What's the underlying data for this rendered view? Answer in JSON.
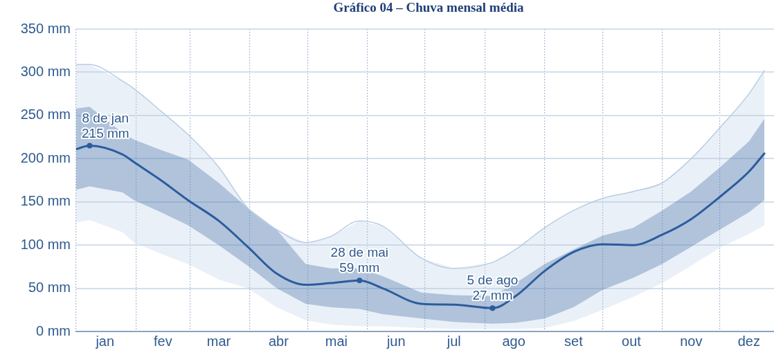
{
  "chart_data": {
    "type": "line",
    "title": "Gráfico 04 – Chuva mensal média",
    "x": [
      "--01-01",
      "--01-08",
      "--01-25",
      "--01-31",
      "--02-14",
      "--02-28",
      "--03-16",
      "--03-31",
      "--04-15",
      "--04-30",
      "--05-13",
      "--05-28",
      "--06-09",
      "--06-29",
      "--07-16",
      "--08-05",
      "--08-17",
      "--09-01",
      "--09-16",
      "--10-01",
      "--10-17",
      "--11-01",
      "--11-16",
      "--12-01",
      "--12-16",
      "--12-24"
    ],
    "xlim": [
      "--01-01",
      "--12-28"
    ],
    "xticks": [
      {
        "value": "--01-01",
        "label": null
      },
      {
        "value": "--01-16",
        "label": "jan"
      },
      {
        "value": "--02-01",
        "label": null
      },
      {
        "value": "--02-15",
        "label": "fev"
      },
      {
        "value": "--03-01",
        "label": null
      },
      {
        "value": "--03-16",
        "label": "mar"
      },
      {
        "value": "--04-01",
        "label": null
      },
      {
        "value": "--04-16",
        "label": "abr"
      },
      {
        "value": "--05-01",
        "label": null
      },
      {
        "value": "--05-16",
        "label": "mai"
      },
      {
        "value": "--06-01",
        "label": null
      },
      {
        "value": "--06-16",
        "label": "jun"
      },
      {
        "value": "--07-01",
        "label": null
      },
      {
        "value": "--07-16",
        "label": "jul"
      },
      {
        "value": "--08-01",
        "label": null
      },
      {
        "value": "--08-16",
        "label": "ago"
      },
      {
        "value": "--09-01",
        "label": null
      },
      {
        "value": "--09-16",
        "label": "set"
      },
      {
        "value": "--10-01",
        "label": null
      },
      {
        "value": "--10-16",
        "label": "out"
      },
      {
        "value": "--11-01",
        "label": null
      },
      {
        "value": "--11-16",
        "label": "nov"
      },
      {
        "value": "--12-01",
        "label": null
      },
      {
        "value": "--12-16",
        "label": "dez"
      }
    ],
    "ylim": [
      0,
      350
    ],
    "yticks": [
      {
        "value": 0,
        "label": "0 mm"
      },
      {
        "value": 50,
        "label": "50 mm"
      },
      {
        "value": 100,
        "label": "100 mm"
      },
      {
        "value": 150,
        "label": "150 mm"
      },
      {
        "value": 200,
        "label": "200 mm"
      },
      {
        "value": 250,
        "label": "250 mm"
      },
      {
        "value": 300,
        "label": "300 mm"
      },
      {
        "value": 350,
        "label": "350 mm"
      }
    ],
    "grid": true,
    "legend": false,
    "marker": "none",
    "line_style": "solid",
    "series": [
      {
        "color": "#2b5c9c",
        "values": [
          211,
          215,
          205,
          196,
          175,
          152,
          128,
          98,
          67,
          54,
          56,
          59,
          50,
          32,
          31,
          27,
          41,
          70,
          92,
          101,
          100,
          112,
          130,
          156,
          185,
          206
        ],
        "lower": [
          164,
          168,
          161,
          152,
          138,
          123,
          100,
          76,
          50,
          32,
          28,
          26,
          20,
          15,
          11,
          9,
          10,
          15,
          28,
          48,
          62,
          78,
          98,
          118,
          138,
          152
        ],
        "upper": [
          258,
          260,
          230,
          222,
          210,
          199,
          172,
          143,
          118,
          78,
          73,
          73,
          64,
          45,
          42,
          41,
          56,
          78,
          95,
          111,
          120,
          140,
          162,
          190,
          220,
          246
        ]
      },
      {
        "color": "#b9cce3",
        "values": [
          309,
          309,
          290,
          281,
          255,
          228,
          190,
          143,
          118,
          103,
          110,
          128,
          122,
          85,
          73,
          80,
          95,
          120,
          140,
          154,
          162,
          172,
          200,
          236,
          275,
          302
        ],
        "lower": [
          126,
          129,
          115,
          103,
          90,
          78,
          60,
          50,
          28,
          13,
          8,
          6,
          6,
          4,
          3,
          3,
          3,
          4,
          12,
          25,
          40,
          56,
          76,
          97,
          113,
          123
        ],
        "upper": [
          309,
          309,
          290,
          281,
          255,
          228,
          190,
          143,
          118,
          103,
          110,
          128,
          122,
          85,
          73,
          80,
          95,
          120,
          140,
          154,
          162,
          172,
          200,
          236,
          275,
          302
        ]
      }
    ],
    "annotations": [
      {
        "text": "8 de jan\n215 mm",
        "x": "--01-08",
        "y": 215
      },
      {
        "text": "28 de mai\n59 mm",
        "x": "--05-28",
        "y": 59
      },
      {
        "text": "5 de ago\n27 mm",
        "x": "--08-05",
        "y": 27
      }
    ]
  }
}
